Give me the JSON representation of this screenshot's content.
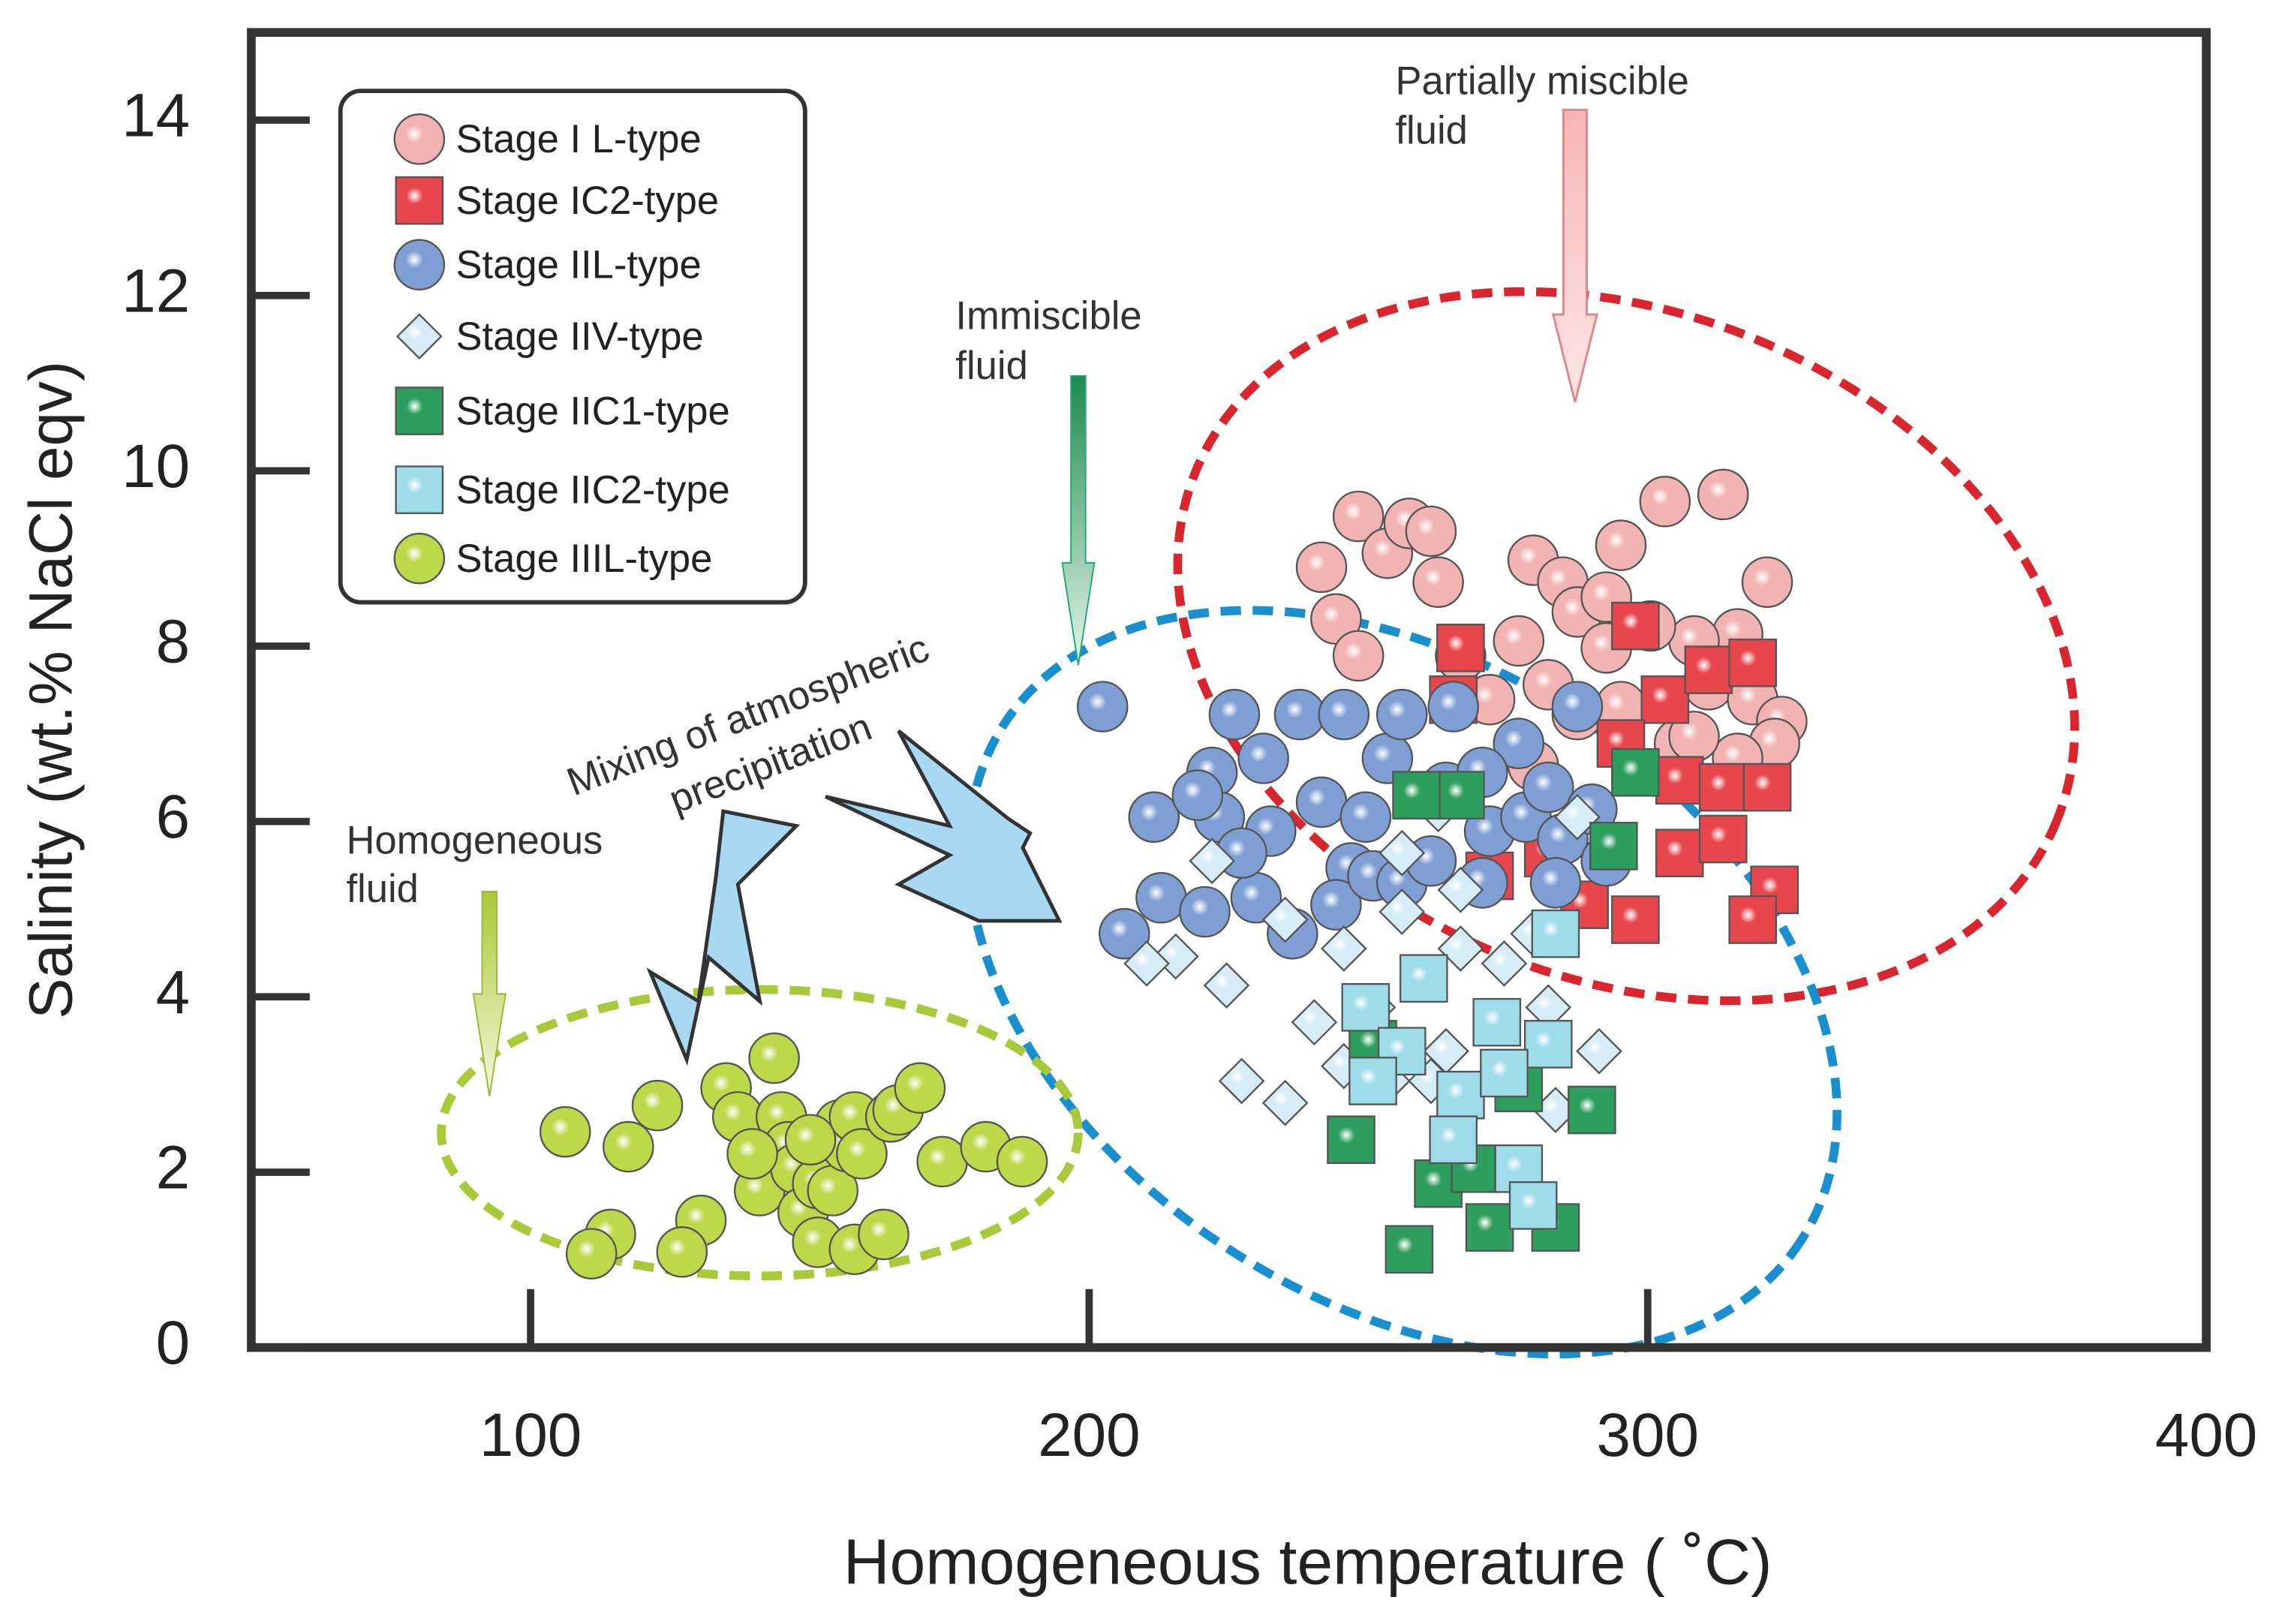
{
  "chart_data": {
    "type": "scatter",
    "x_label": "Homogeneous temperature ( ˚C)",
    "y_label": "Salinity (wt.% NaCl eqv)",
    "xlim": [
      50,
      400
    ],
    "ylim": [
      0,
      15
    ],
    "xticks": [
      100,
      200,
      300,
      400
    ],
    "yticks": [
      0,
      2,
      4,
      6,
      8,
      10,
      12,
      14
    ],
    "annotations": [
      [
        "Partially miscible",
        "fluid"
      ],
      [
        "Immiscible",
        "fluid"
      ],
      [
        "Mixing of atmospheric",
        "precipitation"
      ],
      [
        "Homogeneous",
        "fluid"
      ]
    ],
    "series": [
      {
        "name": "Stage I L-type",
        "color": "#f2b3b3",
        "marker": "circle",
        "x": [
          241.6,
          248.2,
          253.4,
          257.3,
          261.2,
          262.5,
          244.2,
          248.2,
          266.5,
          279.5,
          284.8,
          287.4,
          292.6,
          295.2,
          303.1,
          313.5,
          321.4,
          316.1,
          308.3,
          300.5,
          292.6,
          282.2,
          276.9,
          287.4,
          295.2,
          305.7,
          310.9,
          318.8,
          324.0,
          322.7,
          316.1,
          308.3,
          271.7,
          279.5
        ],
        "values": [
          8.9,
          9.48,
          9.06,
          9.4,
          9.31,
          8.73,
          8.31,
          7.89,
          7.89,
          8.98,
          8.73,
          8.39,
          8.56,
          9.15,
          9.65,
          9.73,
          8.73,
          8.14,
          8.06,
          8.23,
          7.98,
          7.56,
          8.06,
          7.22,
          7.31,
          6.89,
          7.56,
          7.39,
          7.14,
          6.89,
          6.72,
          6.97,
          7.39,
          6.64
        ]
      },
      {
        "name": "Stage IC2-type",
        "color": "#e8464d",
        "marker": "square",
        "x": [
          266.5,
          265.2,
          297.8,
          303.1,
          310.9,
          318.8,
          305.7,
          313.5,
          321.4,
          295.2,
          305.7,
          313.5,
          322.7,
          318.8,
          297.8,
          288.7,
          271.7,
          282.2
        ],
        "values": [
          7.98,
          7.39,
          8.23,
          7.39,
          7.73,
          7.81,
          6.47,
          6.39,
          6.39,
          6.89,
          5.64,
          5.8,
          5.22,
          4.88,
          4.88,
          5.05,
          5.38,
          5.64
        ]
      },
      {
        "name": "Stage IIL-type",
        "color": "#7f9fd4",
        "marker": "circle",
        "x": [
          202.4,
          211.6,
          206.3,
          212.9,
          220.7,
          229.9,
          236.4,
          222.0,
          226.0,
          231.2,
          223.3,
          232.5,
          237.7,
          245.6,
          253.4,
          256.0,
          265.2,
          276.9,
          287.4,
          241.6,
          246.9,
          249.5,
          244.2,
          250.8,
          256.0,
          263.9,
          270.4,
          271.7,
          278.2,
          282.2,
          284.8,
          290.0,
          292.6,
          283.5,
          270.4,
          261.2,
          227.3,
          219.4
        ],
        "values": [
          7.31,
          6.05,
          4.72,
          5.13,
          4.97,
          5.13,
          4.72,
          6.56,
          7.22,
          6.72,
          6.05,
          5.89,
          7.22,
          7.22,
          6.72,
          7.22,
          7.31,
          6.89,
          7.31,
          6.22,
          5.47,
          6.05,
          5.05,
          5.38,
          5.3,
          6.39,
          6.56,
          5.89,
          6.05,
          6.39,
          5.8,
          6.14,
          5.55,
          5.3,
          5.3,
          5.55,
          5.64,
          6.3
        ]
      },
      {
        "name": "Stage IIV-type",
        "color": "#d6ecf7",
        "marker": "diamond",
        "x": [
          222.0,
          215.5,
          224.6,
          227.3,
          235.1,
          235.1,
          240.3,
          245.6,
          250.8,
          256.0,
          262.5,
          266.5,
          274.3,
          282.2,
          279.5,
          287.4,
          291.3,
          283.5,
          261.2,
          253.4,
          245.6,
          266.5,
          263.9,
          210.3,
          256.0
        ],
        "values": [
          5.55,
          4.46,
          4.13,
          3.04,
          2.79,
          4.88,
          3.71,
          4.55,
          3.88,
          4.97,
          6.14,
          4.55,
          4.38,
          3.88,
          4.72,
          6.05,
          3.38,
          2.71,
          3.04,
          3.04,
          3.21,
          5.22,
          3.38,
          4.38,
          5.64
        ]
      },
      {
        "name": "Stage IIC1-type",
        "color": "#2e9e5e",
        "marker": "square",
        "x": [
          246.9,
          257.3,
          262.5,
          271.7,
          283.5,
          290.0,
          266.5,
          258.6,
          297.8,
          293.9,
          250.8,
          276.9,
          269.1
        ],
        "values": [
          2.37,
          1.12,
          1.87,
          1.37,
          1.37,
          2.71,
          6.3,
          6.3,
          6.56,
          5.72,
          3.46,
          2.96,
          2.04
        ]
      },
      {
        "name": "Stage IIC2-type",
        "color": "#9fdcea",
        "marker": "square",
        "x": [
          259.9,
          249.5,
          256.0,
          266.5,
          265.2,
          276.9,
          279.5,
          282.2,
          274.3,
          283.5,
          250.8,
          273.0
        ],
        "values": [
          4.21,
          3.88,
          3.38,
          2.88,
          2.37,
          2.04,
          1.62,
          3.46,
          3.13,
          4.72,
          3.04,
          3.71
        ]
      },
      {
        "name": "Stage IIIL-type",
        "color": "#bcd94a",
        "marker": "circle",
        "x": [
          106.2,
          117.5,
          122.7,
          114.3,
          110.9,
          130.5,
          127.1,
          135.0,
          137.1,
          143.6,
          144.9,
          146.2,
          141.0,
          147.5,
          148.8,
          151.4,
          154.1,
          155.4,
          156.7,
          158.0,
          159.3,
          151.4,
          158.0,
          163.2,
          164.5,
          165.8,
          169.7,
          173.7,
          181.5,
          188.0,
          150.1,
          139.7
        ],
        "values": [
          2.46,
          2.29,
          2.76,
          1.29,
          1.07,
          1.45,
          1.09,
          2.96,
          2.63,
          3.3,
          2.63,
          2.29,
          1.79,
          2.04,
          1.54,
          1.87,
          1.79,
          2.54,
          2.29,
          2.63,
          2.21,
          1.2,
          1.12,
          1.29,
          2.63,
          2.71,
          2.96,
          2.12,
          2.29,
          2.12,
          2.37,
          2.21
        ]
      }
    ]
  }
}
